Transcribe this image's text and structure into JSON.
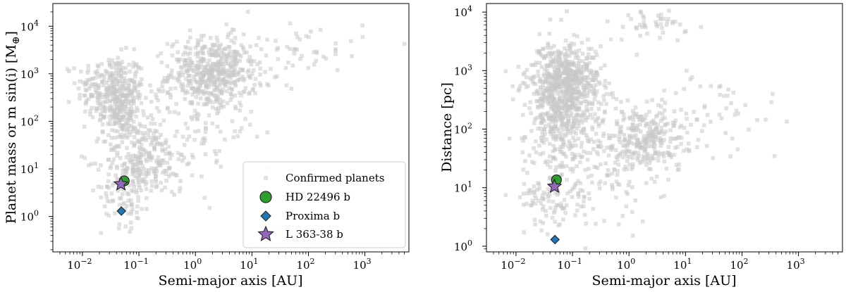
{
  "colors": {
    "confirmed": "#c8c8c8",
    "hd22496": "#2ca02c",
    "proxima": "#1f77b4",
    "l36338": "#9467bd",
    "edge": "#222222"
  },
  "chart_data": [
    {
      "type": "scatter",
      "title": "",
      "xlabel": "Semi-major axis [AU]",
      "ylabel": "Planet mass or m sin(i) [M⊕]",
      "xscale": "log",
      "yscale": "log",
      "xlim": [
        0.003,
        6000
      ],
      "ylim": [
        0.18,
        30000
      ],
      "xticks": [
        0.01,
        0.1,
        1,
        10,
        100,
        1000
      ],
      "xtick_labels": [
        {
          "b": "10",
          "e": "−2"
        },
        {
          "b": "10",
          "e": "−1"
        },
        {
          "b": "10",
          "e": "0"
        },
        {
          "b": "10",
          "e": "1"
        },
        {
          "b": "10",
          "e": "2"
        },
        {
          "b": "10",
          "e": "3"
        }
      ],
      "yticks": [
        1,
        10,
        100,
        1000,
        10000
      ],
      "ytick_labels": [
        {
          "b": "10",
          "e": "0"
        },
        {
          "b": "10",
          "e": "1"
        },
        {
          "b": "10",
          "e": "2"
        },
        {
          "b": "10",
          "e": "3"
        },
        {
          "b": "10",
          "e": "4"
        }
      ],
      "legend": {
        "position": "lower-right",
        "entries": [
          {
            "label": "Confirmed planets",
            "marker": "square",
            "color_key": "confirmed"
          },
          {
            "label": "HD 22496 b",
            "marker": "circle",
            "color_key": "hd22496"
          },
          {
            "label": "Proxima b",
            "marker": "diamond",
            "color_key": "proxima"
          },
          {
            "label": "L 363-38 b",
            "marker": "star",
            "color_key": "l36338"
          }
        ]
      },
      "clusters": [
        {
          "cx": 0.032,
          "cy": 500,
          "sx": 0.3,
          "sy": 0.35,
          "n": 260
        },
        {
          "cx": 0.05,
          "cy": 160,
          "sx": 0.18,
          "sy": 0.35,
          "n": 160
        },
        {
          "cx": 2,
          "cy": 1000,
          "sx": 0.38,
          "sy": 0.38,
          "n": 500
        },
        {
          "cx": 0.12,
          "cy": 15,
          "sx": 0.35,
          "sy": 0.35,
          "n": 180
        },
        {
          "cx": 0.06,
          "cy": 4,
          "sx": 0.22,
          "sy": 0.4,
          "n": 100
        },
        {
          "cx": 60,
          "cy": 3000,
          "sx": 0.6,
          "sy": 0.35,
          "n": 60
        },
        {
          "cx": 0.5,
          "cy": 60,
          "sx": 0.7,
          "sy": 0.6,
          "n": 140
        }
      ],
      "highlighted": [
        {
          "name": "HD 22496 b",
          "x": 0.055,
          "y": 5.6,
          "marker": "circle",
          "color_key": "hd22496"
        },
        {
          "name": "Proxima b",
          "x": 0.049,
          "y": 1.3,
          "marker": "diamond",
          "color_key": "proxima"
        },
        {
          "name": "L 363-38 b",
          "x": 0.048,
          "y": 4.8,
          "marker": "star",
          "color_key": "l36338"
        }
      ]
    },
    {
      "type": "scatter",
      "title": "",
      "xlabel": "Semi-major axis [AU]",
      "ylabel": "Distance [pc]",
      "xscale": "log",
      "yscale": "log",
      "xlim": [
        0.003,
        6000
      ],
      "ylim": [
        0.8,
        14000
      ],
      "xticks": [
        0.01,
        0.1,
        1,
        10,
        100,
        1000
      ],
      "xtick_labels": [
        {
          "b": "10",
          "e": "−2"
        },
        {
          "b": "10",
          "e": "−1"
        },
        {
          "b": "10",
          "e": "0"
        },
        {
          "b": "10",
          "e": "1"
        },
        {
          "b": "10",
          "e": "2"
        },
        {
          "b": "10",
          "e": "3"
        }
      ],
      "yticks": [
        1,
        10,
        100,
        1000,
        10000
      ],
      "ytick_labels": [
        {
          "b": "10",
          "e": "0"
        },
        {
          "b": "10",
          "e": "1"
        },
        {
          "b": "10",
          "e": "2"
        },
        {
          "b": "10",
          "e": "3"
        },
        {
          "b": "10",
          "e": "4"
        }
      ],
      "clusters": [
        {
          "cx": 0.07,
          "cy": 600,
          "sx": 0.32,
          "sy": 0.35,
          "n": 620
        },
        {
          "cx": 0.06,
          "cy": 150,
          "sx": 0.3,
          "sy": 0.4,
          "n": 230
        },
        {
          "cx": 2,
          "cy": 60,
          "sx": 0.35,
          "sy": 0.3,
          "n": 280
        },
        {
          "cx": 2.5,
          "cy": 6000,
          "sx": 0.3,
          "sy": 0.12,
          "n": 45
        },
        {
          "cx": 0.05,
          "cy": 10,
          "sx": 0.35,
          "sy": 0.35,
          "n": 130
        },
        {
          "cx": 30,
          "cy": 150,
          "sx": 0.65,
          "sy": 0.4,
          "n": 60
        },
        {
          "cx": 0.3,
          "cy": 30,
          "sx": 0.6,
          "sy": 0.6,
          "n": 130
        }
      ],
      "highlighted": [
        {
          "name": "HD 22496 b",
          "x": 0.052,
          "y": 13.6,
          "marker": "circle",
          "color_key": "hd22496"
        },
        {
          "name": "Proxima b",
          "x": 0.049,
          "y": 1.3,
          "marker": "diamond",
          "color_key": "proxima"
        },
        {
          "name": "L 363-38 b",
          "x": 0.048,
          "y": 10.5,
          "marker": "star",
          "color_key": "l36338"
        }
      ]
    }
  ]
}
